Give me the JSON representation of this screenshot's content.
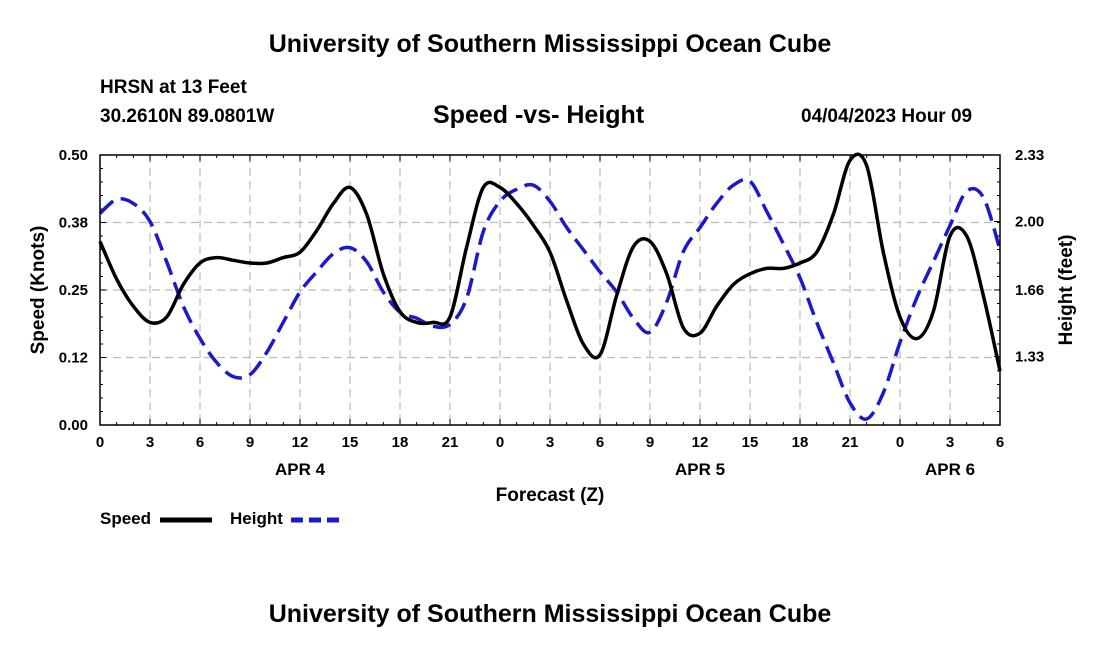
{
  "header": {
    "title_top": "University of Southern Mississippi Ocean Cube",
    "title_bottom": "University of Southern Mississippi Ocean Cube",
    "station": "HRSN at 13 Feet",
    "coords": "30.2610N  89.0801W",
    "subtitle": "Speed -vs- Height",
    "datetime": "04/04/2023 Hour 09"
  },
  "legend": {
    "speed": "Speed",
    "height": "Height"
  },
  "colors": {
    "speed": "#000000",
    "height": "#1a1acc",
    "grid": "#bbbbbb"
  },
  "chart_data": {
    "type": "line",
    "title": "Speed -vs- Height",
    "xlabel": "Forecast (Z)",
    "ylabel": "Speed (Knots)",
    "ylabel_right": "Height (feet)",
    "x_unit": "hours since APR 4 00Z",
    "xlim": [
      0,
      54
    ],
    "ylim": [
      0,
      0.5
    ],
    "ylim_right": [
      0.99,
      2.33
    ],
    "yticks": [
      "0.00",
      "0.12",
      "0.25",
      "0.38",
      "0.50"
    ],
    "yticks_right": [
      "1.33",
      "1.66",
      "2.00",
      "2.33"
    ],
    "xticks": [
      "0",
      "3",
      "6",
      "9",
      "12",
      "15",
      "18",
      "21",
      "0",
      "3",
      "6",
      "9",
      "12",
      "15",
      "18",
      "21",
      "0",
      "3",
      "6"
    ],
    "day_labels": [
      {
        "label": "APR 4",
        "x": 12
      },
      {
        "label": "APR 5",
        "x": 36
      },
      {
        "label": "APR 6",
        "x": 51
      }
    ],
    "grid": true,
    "series": [
      {
        "name": "Speed",
        "axis": "left",
        "style": "solid",
        "x": [
          0,
          1,
          2,
          3,
          4,
          5,
          6,
          7,
          8,
          9,
          10,
          11,
          12,
          13,
          14,
          15,
          16,
          17,
          18,
          19,
          20,
          21,
          22,
          23,
          24,
          25,
          26,
          27,
          28,
          29,
          30,
          31,
          32,
          33,
          34,
          35,
          36,
          37,
          38,
          39,
          40,
          41,
          42,
          43,
          44,
          45,
          46,
          47,
          48,
          49,
          50,
          51,
          52,
          53,
          54
        ],
        "values": [
          0.34,
          0.27,
          0.22,
          0.19,
          0.2,
          0.26,
          0.3,
          0.31,
          0.305,
          0.3,
          0.3,
          0.31,
          0.32,
          0.36,
          0.41,
          0.44,
          0.39,
          0.28,
          0.21,
          0.19,
          0.19,
          0.2,
          0.33,
          0.44,
          0.44,
          0.41,
          0.37,
          0.32,
          0.23,
          0.15,
          0.13,
          0.24,
          0.33,
          0.34,
          0.28,
          0.18,
          0.17,
          0.22,
          0.26,
          0.28,
          0.29,
          0.29,
          0.3,
          0.32,
          0.39,
          0.49,
          0.48,
          0.32,
          0.2,
          0.16,
          0.21,
          0.35,
          0.35,
          0.24,
          0.1
        ]
      },
      {
        "name": "Height",
        "axis": "right",
        "style": "dashed",
        "x": [
          0,
          1,
          2,
          3,
          4,
          5,
          6,
          7,
          8,
          9,
          10,
          11,
          12,
          13,
          14,
          15,
          16,
          17,
          18,
          19,
          20,
          21,
          22,
          23,
          24,
          25,
          26,
          27,
          28,
          29,
          30,
          31,
          32,
          33,
          34,
          35,
          36,
          37,
          38,
          39,
          40,
          41,
          42,
          43,
          44,
          45,
          46,
          47,
          48,
          49,
          50,
          51,
          52,
          53,
          54
        ],
        "values": [
          2.04,
          2.11,
          2.09,
          2.0,
          1.8,
          1.58,
          1.42,
          1.3,
          1.23,
          1.24,
          1.35,
          1.5,
          1.65,
          1.75,
          1.84,
          1.87,
          1.8,
          1.65,
          1.55,
          1.52,
          1.48,
          1.49,
          1.62,
          1.95,
          2.1,
          2.16,
          2.18,
          2.1,
          1.97,
          1.86,
          1.75,
          1.65,
          1.52,
          1.45,
          1.6,
          1.85,
          1.97,
          2.09,
          2.18,
          2.2,
          2.05,
          1.89,
          1.72,
          1.5,
          1.3,
          1.1,
          1.02,
          1.15,
          1.4,
          1.62,
          1.8,
          1.98,
          2.15,
          2.12,
          1.86
        ]
      }
    ]
  }
}
